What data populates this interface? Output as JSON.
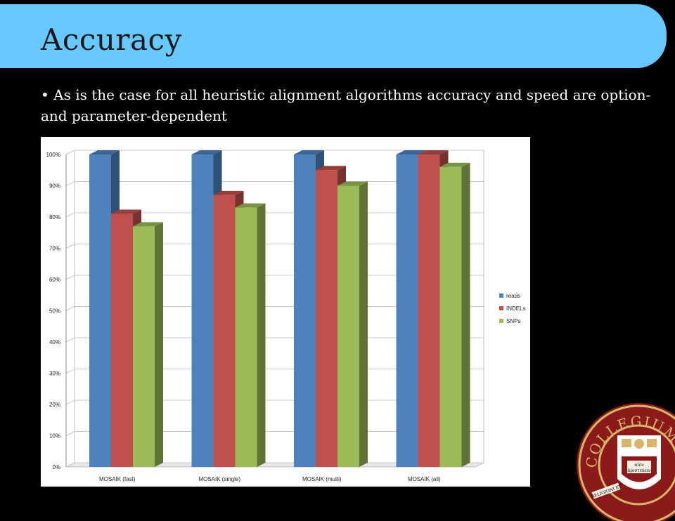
{
  "slide": {
    "title": "Accuracy",
    "bullet": "• As is the case for all heuristic alignment algorithms accuracy and speed are option- and parameter-dependent"
  },
  "seal": {
    "text": "COLLEGIUM BOSTONIENSE",
    "motto_1": "αἰὲν",
    "motto_2": "ἀριστεύειν",
    "band": "RELIGIONI ET"
  },
  "colors": {
    "title_bar": "#67c7ff",
    "reads": "#4f81bd",
    "indels": "#c0504d",
    "snps": "#9bbb59"
  },
  "chart_data": {
    "type": "bar",
    "categories": [
      "MOSAIK (fast)",
      "MOSAIK (single)",
      "MOSAIK (multi)",
      "MOSAIK (all)"
    ],
    "series": [
      {
        "name": "reads",
        "values": [
          100,
          100,
          100,
          100
        ],
        "color": "#4f81bd"
      },
      {
        "name": "INDELs",
        "values": [
          81,
          87,
          95,
          100
        ],
        "color": "#c0504d"
      },
      {
        "name": "SNPs",
        "values": [
          77,
          83,
          90,
          96
        ],
        "color": "#9bbb59"
      }
    ],
    "yticks": [
      "0%",
      "10%",
      "20%",
      "30%",
      "40%",
      "50%",
      "60%",
      "70%",
      "80%",
      "90%",
      "100%"
    ],
    "ylim": [
      0,
      100
    ],
    "grid": true,
    "legend_position": "right",
    "style": "3d-clustered-column"
  }
}
